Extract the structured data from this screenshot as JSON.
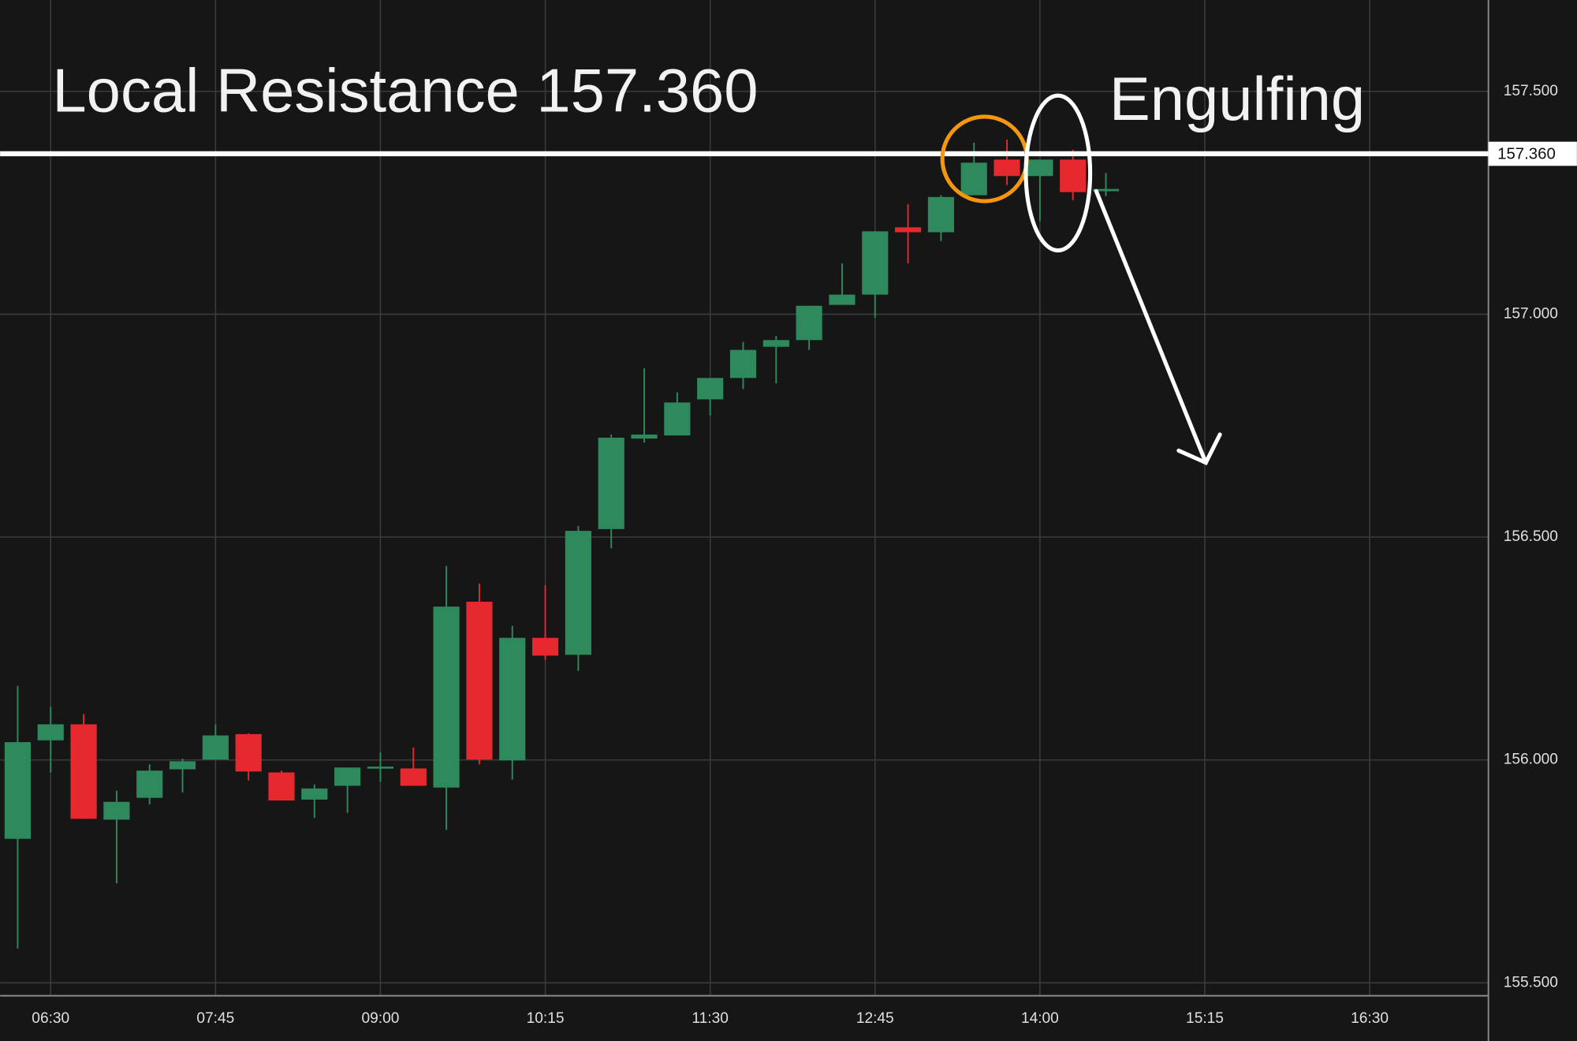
{
  "chart_data": {
    "type": "candlestick",
    "title": "Local Resistance 157.360",
    "annotation": "Engulfing",
    "x": [
      "06:15",
      "06:30",
      "06:45",
      "07:00",
      "07:15",
      "07:30",
      "07:45",
      "08:00",
      "08:15",
      "08:30",
      "08:45",
      "09:00",
      "09:15",
      "09:30",
      "09:45",
      "10:00",
      "10:15",
      "10:30",
      "10:45",
      "11:00",
      "11:15",
      "11:30",
      "11:45",
      "12:00",
      "12:15",
      "12:30",
      "12:45",
      "13:00",
      "13:15",
      "13:30",
      "13:45",
      "14:00",
      "14:15",
      "14:30"
    ],
    "series": [
      {
        "open": [
          155.823,
          156.044,
          156.08,
          155.866,
          155.915,
          155.979,
          156.001,
          156.058,
          155.972,
          155.911,
          155.942,
          155.981,
          155.981,
          155.938,
          156.355,
          155.999,
          156.274,
          156.236,
          156.518,
          156.721,
          156.728,
          156.809,
          156.857,
          156.927,
          156.942,
          157.021,
          157.044,
          157.195,
          157.184,
          157.267,
          157.347,
          157.31,
          157.347,
          157.276
        ],
        "high": [
          156.166,
          156.119,
          156.103,
          155.931,
          155.99,
          156.003,
          156.08,
          156.06,
          155.976,
          155.945,
          155.983,
          156.017,
          156.028,
          156.435,
          156.396,
          156.301,
          156.392,
          156.525,
          156.73,
          156.879,
          156.825,
          156.857,
          156.938,
          156.951,
          157.019,
          157.114,
          157.186,
          157.247,
          157.267,
          157.385,
          157.392,
          157.347,
          157.369,
          157.317
        ],
        "low": [
          155.577,
          155.972,
          155.868,
          155.723,
          155.9,
          155.927,
          156.001,
          155.954,
          155.909,
          155.87,
          155.881,
          155.951,
          155.942,
          155.843,
          155.99,
          155.956,
          156.225,
          156.2,
          156.475,
          156.712,
          156.728,
          156.773,
          156.832,
          156.845,
          156.92,
          157.021,
          156.992,
          157.114,
          157.164,
          157.267,
          157.29,
          157.209,
          157.256,
          157.265
        ],
        "close": [
          156.04,
          156.08,
          155.868,
          155.906,
          155.976,
          155.997,
          156.055,
          155.974,
          155.909,
          155.936,
          155.983,
          155.985,
          155.942,
          156.344,
          156.001,
          156.274,
          156.234,
          156.514,
          156.723,
          156.73,
          156.802,
          156.857,
          156.92,
          156.942,
          157.019,
          157.044,
          157.186,
          157.184,
          157.263,
          157.34,
          157.31,
          157.347,
          157.274,
          157.281
        ]
      }
    ],
    "up_color": "#2e8a5c",
    "down_color": "#e5292e",
    "xlim": [
      "06:07",
      "17:24"
    ],
    "xticks": [
      "06:30",
      "07:45",
      "09:00",
      "10:15",
      "11:30",
      "12:45",
      "14:00",
      "15:15",
      "16:30"
    ],
    "ylim": [
      155.471,
      157.705
    ],
    "yticks": [
      {
        "value": 155.5,
        "label": "155.500"
      },
      {
        "value": 156,
        "label": "156.000"
      },
      {
        "value": 156.5,
        "label": "156.500"
      },
      {
        "value": 157,
        "label": "157.000"
      },
      {
        "value": 157.5,
        "label": "157.500"
      }
    ],
    "resistance": {
      "value": 157.36,
      "label": "157.360"
    },
    "grid": true
  }
}
